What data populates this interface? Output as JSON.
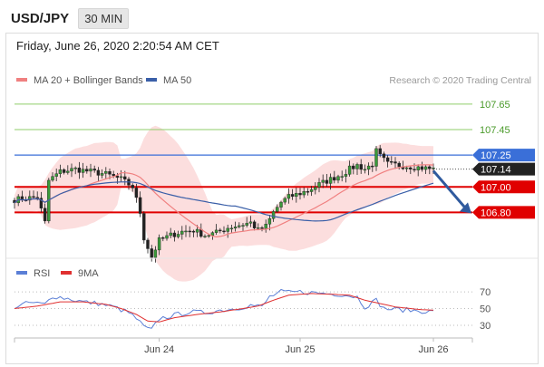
{
  "header": {
    "symbol": "USD/JPY",
    "timeframe": "30 MIN"
  },
  "timestamp": "Friday, June 26, 2020 2:20:54 AM CET",
  "credit": "Research © 2020 Trading Central",
  "legend": [
    {
      "label": "MA 20 + Bollinger Bands",
      "color": "#f08080"
    },
    {
      "label": "MA 50",
      "color": "#3a5fa8"
    }
  ],
  "rsi_legend": [
    {
      "label": "RSI",
      "color": "#5b7fd6"
    },
    {
      "label": "9MA",
      "color": "#e03030"
    }
  ],
  "chart_data": {
    "type": "candlestick",
    "x_ticks": [
      "Jun 24",
      "Jun 25",
      "Jun 26"
    ],
    "y_range": [
      106.44,
      107.77
    ],
    "resistance_levels": [
      107.65,
      107.45
    ],
    "pivot_level": 107.25,
    "current_price": 107.14,
    "support_levels": [
      107.0,
      106.8
    ],
    "projection": "down toward 106.80",
    "price_path": [
      [
        0,
        106.9
      ],
      [
        3,
        106.91
      ],
      [
        6,
        106.92
      ],
      [
        8,
        106.72
      ],
      [
        9,
        107.05
      ],
      [
        12,
        107.12
      ],
      [
        16,
        107.14
      ],
      [
        20,
        107.12
      ],
      [
        24,
        107.1
      ],
      [
        28,
        107.06
      ],
      [
        31,
        107.0
      ],
      [
        33,
        106.8
      ],
      [
        34,
        106.6
      ],
      [
        36,
        106.45
      ],
      [
        38,
        106.58
      ],
      [
        41,
        106.62
      ],
      [
        44,
        106.65
      ],
      [
        47,
        106.66
      ],
      [
        50,
        106.62
      ],
      [
        53,
        106.64
      ],
      [
        56,
        106.68
      ],
      [
        59,
        106.7
      ],
      [
        62,
        106.72
      ],
      [
        64,
        106.66
      ],
      [
        66,
        106.69
      ],
      [
        68,
        106.8
      ],
      [
        70,
        106.88
      ],
      [
        72,
        106.92
      ],
      [
        74,
        106.94
      ],
      [
        77,
        106.97
      ],
      [
        80,
        107.02
      ],
      [
        83,
        107.06
      ],
      [
        86,
        107.1
      ],
      [
        88,
        107.14
      ],
      [
        90,
        107.17
      ],
      [
        92,
        107.14
      ],
      [
        94,
        107.18
      ],
      [
        95,
        107.28
      ],
      [
        96,
        107.24
      ],
      [
        98,
        107.18
      ],
      [
        101,
        107.17
      ],
      [
        104,
        107.16
      ],
      [
        107,
        107.15
      ],
      [
        110,
        107.14
      ]
    ],
    "rsi": {
      "y_ticks": [
        70,
        50,
        30
      ],
      "y_range": [
        18,
        82
      ],
      "rsi_path": [
        [
          0,
          52
        ],
        [
          4,
          57
        ],
        [
          8,
          55
        ],
        [
          10,
          65
        ],
        [
          14,
          62
        ],
        [
          18,
          58
        ],
        [
          22,
          56
        ],
        [
          26,
          52
        ],
        [
          30,
          45
        ],
        [
          32,
          38
        ],
        [
          34,
          28
        ],
        [
          36,
          24
        ],
        [
          38,
          38
        ],
        [
          42,
          42
        ],
        [
          46,
          46
        ],
        [
          50,
          45
        ],
        [
          54,
          48
        ],
        [
          58,
          50
        ],
        [
          62,
          54
        ],
        [
          65,
          52
        ],
        [
          67,
          64
        ],
        [
          70,
          70
        ],
        [
          72,
          69
        ],
        [
          75,
          70
        ],
        [
          78,
          69
        ],
        [
          82,
          68
        ],
        [
          86,
          67
        ],
        [
          90,
          64
        ],
        [
          92,
          52
        ],
        [
          95,
          60
        ],
        [
          97,
          50
        ],
        [
          100,
          49
        ],
        [
          104,
          48
        ],
        [
          107,
          47
        ],
        [
          110,
          46
        ]
      ],
      "ma_path": [
        [
          0,
          50
        ],
        [
          6,
          53
        ],
        [
          12,
          58
        ],
        [
          18,
          58
        ],
        [
          24,
          55
        ],
        [
          28,
          50
        ],
        [
          32,
          43
        ],
        [
          35,
          35
        ],
        [
          38,
          34
        ],
        [
          42,
          39
        ],
        [
          48,
          43
        ],
        [
          54,
          46
        ],
        [
          60,
          50
        ],
        [
          64,
          53
        ],
        [
          68,
          60
        ],
        [
          72,
          66
        ],
        [
          78,
          68
        ],
        [
          84,
          67
        ],
        [
          88,
          66
        ],
        [
          92,
          60
        ],
        [
          96,
          56
        ],
        [
          100,
          52
        ],
        [
          106,
          49
        ],
        [
          110,
          48
        ]
      ]
    }
  }
}
